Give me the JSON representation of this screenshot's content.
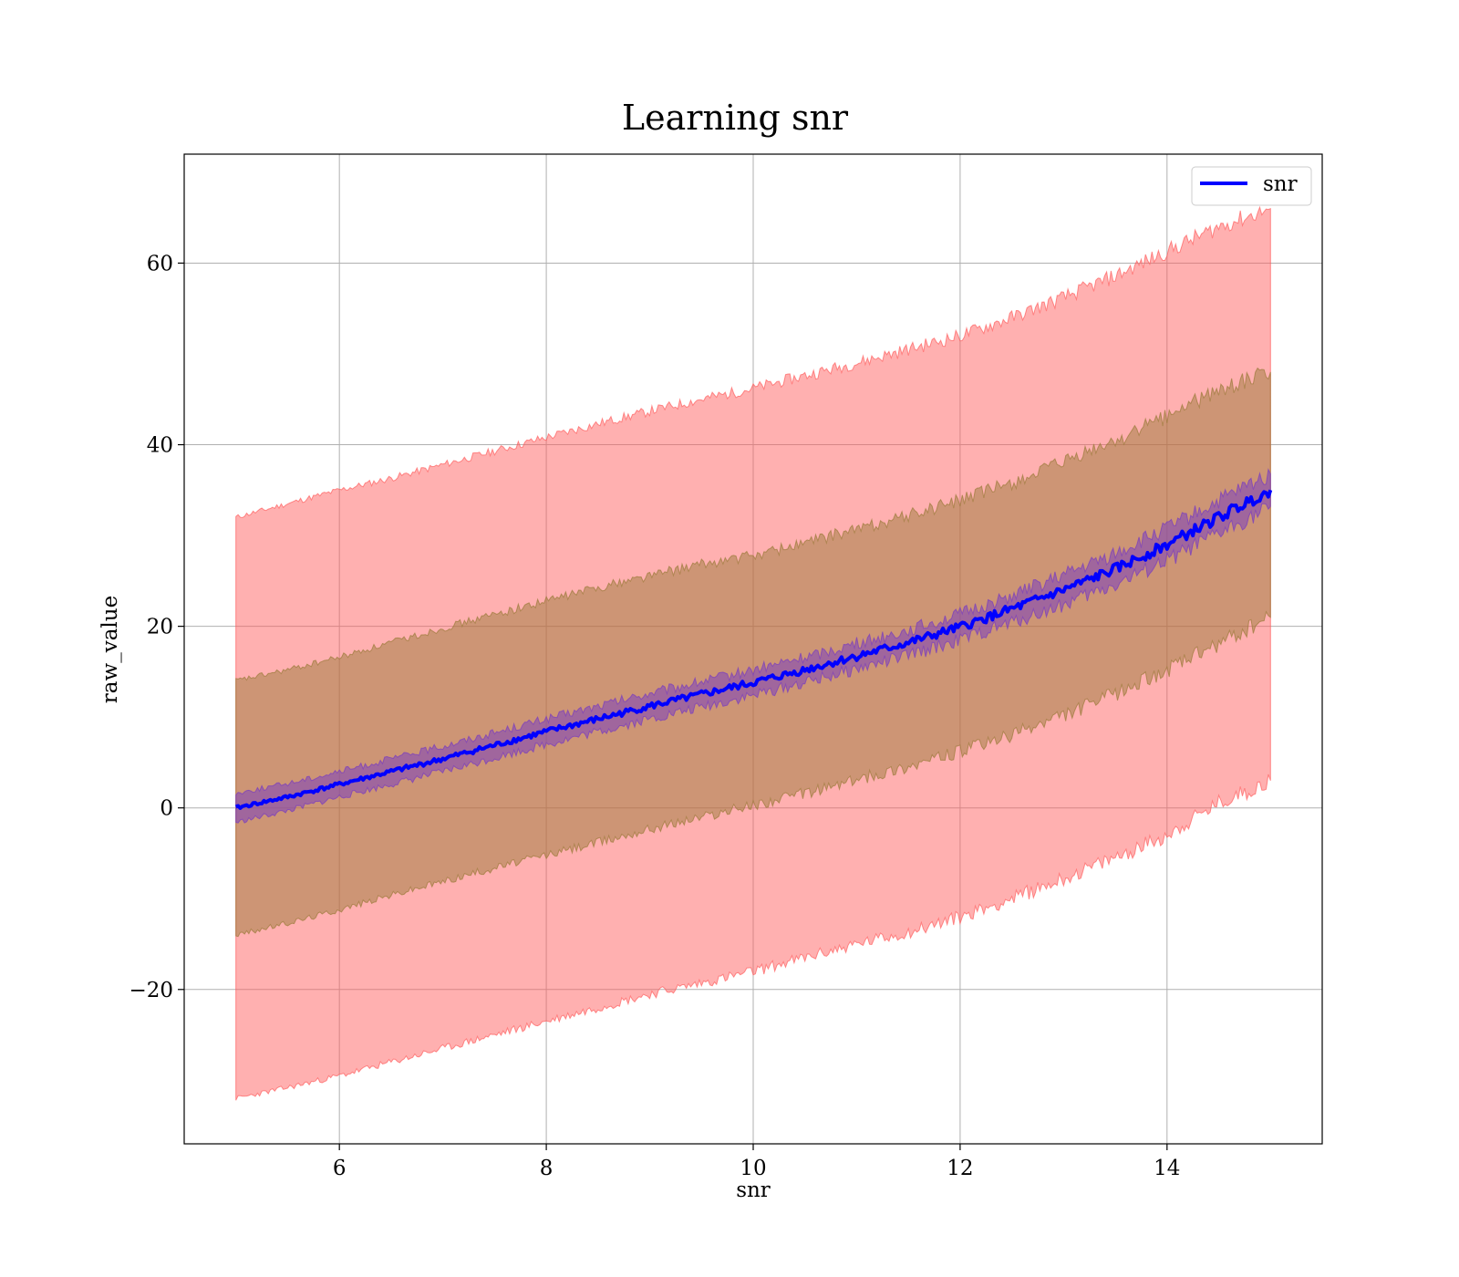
{
  "chart_data": {
    "type": "line",
    "title": "Learning snr",
    "xlabel": "snr",
    "ylabel": "raw_value",
    "xlim": [
      4.5,
      15.5
    ],
    "ylim": [
      -37,
      72
    ],
    "xticks": [
      6,
      8,
      10,
      12,
      14
    ],
    "yticks": [
      -20,
      0,
      20,
      40,
      60
    ],
    "xtick_labels": [
      "6",
      "8",
      "10",
      "12",
      "14"
    ],
    "ytick_labels": [
      "−20",
      "0",
      "20",
      "40",
      "60"
    ],
    "grid": true,
    "legend": {
      "placement": "top-right",
      "entries": [
        "snr"
      ]
    },
    "x": [
      5,
      5.5,
      6,
      6.5,
      7,
      7.5,
      8,
      8.5,
      9,
      9.5,
      10,
      10.5,
      11,
      11.5,
      12,
      12.5,
      13,
      13.5,
      14,
      14.5,
      15
    ],
    "series": [
      {
        "name": "snr",
        "color": "#0000ff",
        "y": [
          0,
          1.2,
          2.6,
          4.0,
          5.4,
          6.9,
          8.4,
          9.8,
          11.2,
          12.5,
          13.8,
          15.2,
          16.7,
          18.2,
          19.9,
          21.9,
          24.0,
          26.3,
          29.0,
          32.0,
          35.0
        ]
      }
    ],
    "bands": [
      {
        "color": "#ff5a5a",
        "opacity": 0.48,
        "upper": [
          32,
          33.5,
          35,
          36.3,
          37.8,
          39.3,
          40.8,
          42.3,
          43.7,
          45.0,
          46.2,
          47.6,
          49.0,
          50.5,
          52.0,
          54.0,
          56.2,
          58.6,
          61.3,
          64.0,
          66.0
        ],
        "lower": [
          -32,
          -30.8,
          -29.5,
          -28.0,
          -26.5,
          -25.0,
          -23.5,
          -22.0,
          -20.5,
          -19.3,
          -18.0,
          -16.5,
          -15.0,
          -13.7,
          -12.0,
          -10.0,
          -7.8,
          -5.5,
          -3.0,
          0.5,
          3.0
        ]
      },
      {
        "color": "#9b7a3a",
        "opacity": 0.5,
        "upper": [
          14,
          15.2,
          16.6,
          18.2,
          19.8,
          21.3,
          22.8,
          24.3,
          25.6,
          26.8,
          27.8,
          29.2,
          30.7,
          32.2,
          33.9,
          35.8,
          38.0,
          40.4,
          43.2,
          46.0,
          48.0
        ],
        "lower": [
          -14,
          -12.7,
          -11.2,
          -9.6,
          -8.1,
          -6.6,
          -5.2,
          -3.8,
          -2.3,
          -1.0,
          0.3,
          1.6,
          3.1,
          4.6,
          6.2,
          8.0,
          10.2,
          12.6,
          15.2,
          18.0,
          21.0
        ]
      },
      {
        "color": "#7b3fbe",
        "opacity": 0.55,
        "upper": [
          1.6,
          2.7,
          4.0,
          5.4,
          6.8,
          8.3,
          9.8,
          11.2,
          12.6,
          13.9,
          15.2,
          16.6,
          18.1,
          19.6,
          21.3,
          23.4,
          25.6,
          28.0,
          30.8,
          33.8,
          36.8
        ],
        "lower": [
          -1.6,
          -0.3,
          1.2,
          2.6,
          4.0,
          5.5,
          7.0,
          8.4,
          9.8,
          11.1,
          12.4,
          13.8,
          15.3,
          16.8,
          18.5,
          20.4,
          22.4,
          24.6,
          27.2,
          30.2,
          33.2
        ]
      }
    ]
  }
}
